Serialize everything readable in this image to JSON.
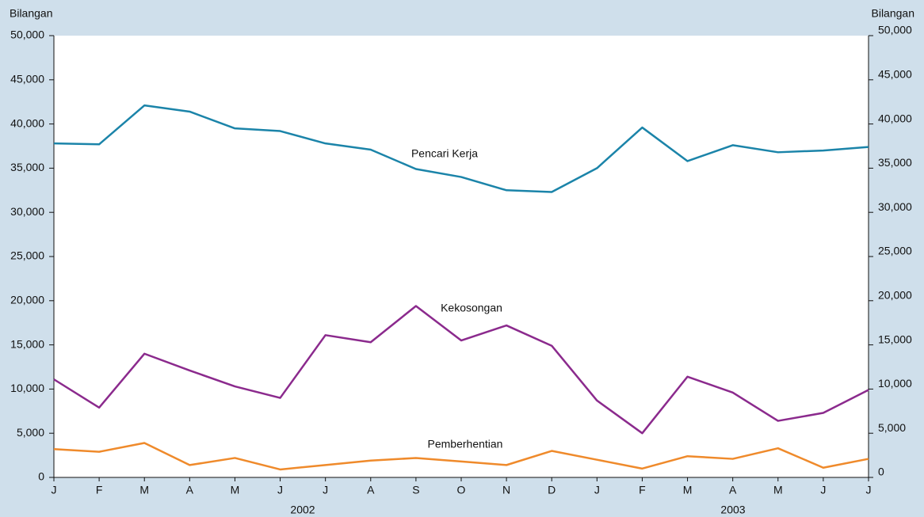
{
  "chart_data": {
    "type": "line",
    "y_label": "Bilangan",
    "y2_label": "Bilangan",
    "categories": [
      "J",
      "F",
      "M",
      "A",
      "M",
      "J",
      "J",
      "A",
      "S",
      "O",
      "N",
      "D",
      "J",
      "F",
      "M",
      "A",
      "M",
      "J",
      "J"
    ],
    "x_groups": [
      "2002",
      "2003"
    ],
    "series": [
      {
        "name": "Pencari Kerja",
        "color": "#1b84a9",
        "values": [
          37800,
          37700,
          42100,
          41400,
          39500,
          39200,
          37800,
          37100,
          34900,
          34000,
          32500,
          32300,
          35000,
          39600,
          35800,
          37600,
          36800,
          37000,
          37400
        ]
      },
      {
        "name": "Kekosongan",
        "color": "#8b2a8d",
        "values": [
          11100,
          7900,
          14000,
          12100,
          10300,
          9000,
          16100,
          15300,
          19400,
          15500,
          17200,
          14900,
          8700,
          5000,
          11400,
          9600,
          6400,
          7300,
          9900
        ]
      },
      {
        "name": "Pemberhentian",
        "color": "#ef8a2b",
        "values": [
          3200,
          2900,
          3900,
          1400,
          2200,
          900,
          1400,
          1900,
          2200,
          1800,
          1400,
          3000,
          2000,
          1000,
          2400,
          2100,
          3300,
          1100,
          2100
        ]
      }
    ],
    "ylim": [
      0,
      50000
    ],
    "yticks": [
      0,
      {
        "value": 5000,
        "label": "5,000"
      },
      {
        "value": 10000,
        "label": "10,000"
      },
      {
        "value": 15000,
        "label": "15,000"
      },
      {
        "value": 20000,
        "label": "20,000"
      },
      {
        "value": 25000,
        "label": "25,000"
      },
      {
        "value": 30000,
        "label": "30,000"
      },
      {
        "value": 35000,
        "label": "35,000"
      },
      {
        "value": 40000,
        "label": "40,000"
      },
      {
        "value": 45000,
        "label": "45,000"
      },
      {
        "value": 50000,
        "label": "50,000"
      }
    ],
    "y2lim": [
      0,
      50000
    ],
    "y2ticks": [
      0,
      {
        "value": 5000,
        "label": "5,000"
      },
      {
        "value": 10000,
        "label": "10,000"
      },
      {
        "value": 15000,
        "label": "15,000"
      },
      {
        "value": 20000,
        "label": "20,000"
      },
      {
        "value": 25000,
        "label": "25,000"
      },
      {
        "value": 30000,
        "label": "30,000"
      },
      {
        "value": 35000,
        "label": "35,000"
      },
      {
        "value": 40000,
        "label": "40,000"
      },
      {
        "value": 45000,
        "label": "45,000"
      },
      {
        "value": 50000,
        "label": "50,000"
      }
    ]
  }
}
